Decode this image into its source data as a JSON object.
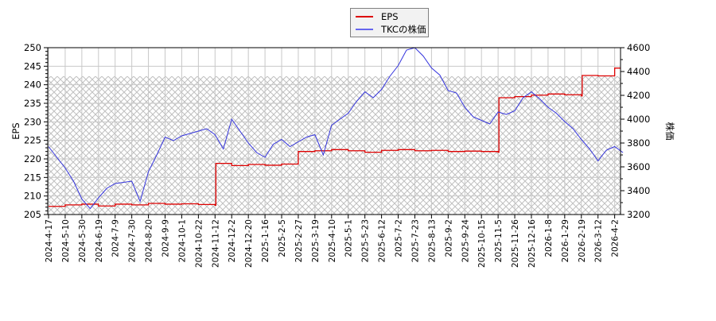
{
  "chart_data": {
    "type": "line",
    "title": "",
    "legend": {
      "position": "top-center",
      "entries": [
        {
          "name": "EPS",
          "color": "#dd0000"
        },
        {
          "name": "TKCの株価",
          "color": "#3333dd"
        }
      ]
    },
    "left_axis": {
      "label": "EPS",
      "ylim": [
        205,
        250
      ],
      "ticks": [
        205,
        210,
        215,
        220,
        225,
        230,
        235,
        240,
        245,
        250
      ]
    },
    "right_axis": {
      "label": "株価",
      "ylim": [
        3200,
        4600
      ],
      "ticks": [
        3200,
        3400,
        3600,
        3800,
        4000,
        4200,
        4400,
        4600
      ]
    },
    "x_tick_labels": [
      "2024-4-17",
      "2024-5-10",
      "2024-5-30",
      "2024-6-19",
      "2024-7-9",
      "2024-7-30",
      "2024-8-20",
      "2024-9-9",
      "2024-10-1",
      "2024-10-22",
      "2024-11-12",
      "2024-12-2",
      "2024-12-20",
      "2025-1-16",
      "2025-2-5",
      "2025-2-27",
      "2025-3-19",
      "2025-4-10",
      "2025-5-1",
      "2025-5-23",
      "2025-6-12",
      "2025-7-2",
      "2025-7-23",
      "2025-8-13",
      "2025-9-2",
      "2025-9-24",
      "2025-10-15",
      "2025-11-5",
      "2025-11-26",
      "2025-12-16",
      "2026-1-8",
      "2026-1-29",
      "2026-2-19",
      "2026-3-12",
      "2026-4-2"
    ],
    "grid": true,
    "hatched_band": {
      "axis": "left",
      "from": 205,
      "to": 242.3
    },
    "series": [
      {
        "name": "EPS",
        "axis": "left",
        "color": "#dd0000",
        "x_index": [
          0,
          1,
          2,
          3,
          4,
          5,
          6,
          7,
          8,
          9,
          10,
          10.05,
          11,
          12,
          13,
          14,
          15,
          16,
          17,
          18,
          19,
          20,
          21,
          22,
          23,
          24,
          25,
          26,
          27,
          27.05,
          28,
          29,
          30,
          31,
          32,
          32.05,
          33,
          34
        ],
        "values": [
          207.2,
          207.6,
          207.8,
          207.3,
          207.8,
          207.6,
          208.0,
          207.8,
          207.9,
          207.7,
          207.5,
          218.8,
          218.2,
          218.5,
          218.3,
          218.6,
          222.0,
          222.2,
          222.5,
          222.2,
          221.8,
          222.3,
          222.5,
          222.2,
          222.3,
          222.0,
          222.1,
          222.0,
          221.8,
          236.5,
          236.8,
          237.2,
          237.5,
          237.3,
          237.0,
          242.5,
          242.4,
          244.5
        ]
      },
      {
        "name": "TKCの株価",
        "axis": "right",
        "color": "#3333dd",
        "x_index": [
          0,
          0.5,
          1,
          1.5,
          2,
          2.5,
          3,
          3.5,
          4,
          4.5,
          5,
          5.5,
          6,
          6.5,
          7,
          7.5,
          8,
          8.5,
          9,
          9.5,
          10,
          10.5,
          11,
          11.5,
          12,
          12.5,
          13,
          13.5,
          14,
          14.5,
          15,
          15.5,
          16,
          16.5,
          17,
          17.5,
          18,
          18.5,
          19,
          19.5,
          20,
          20.5,
          21,
          21.5,
          22,
          22.5,
          23,
          23.5,
          24,
          24.5,
          25,
          25.5,
          26,
          26.5,
          27,
          27.5,
          28,
          28.5,
          29,
          29.5,
          30,
          30.5,
          31,
          31.5,
          32,
          32.5,
          33,
          33.5,
          34,
          34.5
        ],
        "values": [
          3770,
          3680,
          3590,
          3480,
          3330,
          3250,
          3340,
          3420,
          3460,
          3470,
          3480,
          3310,
          3560,
          3700,
          3850,
          3820,
          3860,
          3880,
          3900,
          3920,
          3870,
          3750,
          4000,
          3900,
          3800,
          3720,
          3680,
          3790,
          3830,
          3770,
          3810,
          3850,
          3870,
          3700,
          3950,
          4000,
          4050,
          4150,
          4230,
          4180,
          4250,
          4360,
          4450,
          4580,
          4600,
          4530,
          4430,
          4370,
          4240,
          4220,
          4100,
          4020,
          3990,
          3960,
          4060,
          4040,
          4070,
          4180,
          4230,
          4170,
          4100,
          4050,
          3980,
          3920,
          3830,
          3750,
          3650,
          3740,
          3770,
          3720
        ]
      }
    ]
  }
}
